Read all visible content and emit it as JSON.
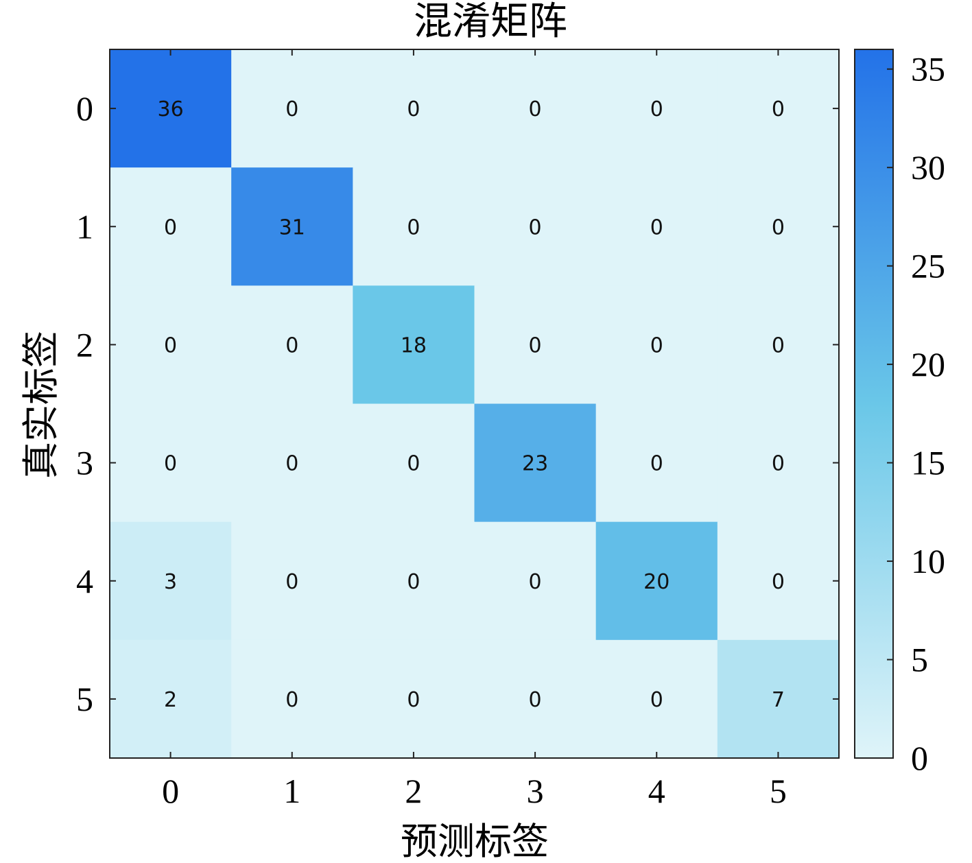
{
  "chart_data": {
    "type": "heatmap",
    "title": "混淆矩阵",
    "xlabel": "预测标签",
    "ylabel": "真实标签",
    "x_categories": [
      "0",
      "1",
      "2",
      "3",
      "4",
      "5"
    ],
    "y_categories": [
      "0",
      "1",
      "2",
      "3",
      "4",
      "5"
    ],
    "values": [
      [
        36,
        0,
        0,
        0,
        0,
        0
      ],
      [
        0,
        31,
        0,
        0,
        0,
        0
      ],
      [
        0,
        0,
        18,
        0,
        0,
        0
      ],
      [
        0,
        0,
        0,
        23,
        0,
        0
      ],
      [
        3,
        0,
        0,
        0,
        20,
        0
      ],
      [
        2,
        0,
        0,
        0,
        0,
        7
      ]
    ],
    "colorbar": {
      "range": [
        0,
        36
      ],
      "ticks": [
        "0",
        "5",
        "10",
        "15",
        "20",
        "25",
        "30",
        "35"
      ],
      "low_color": "#dff4f9",
      "mid_color": "#6ac7e8",
      "high_color": "#2372e8"
    },
    "grid": false,
    "legend": "colorbar-right"
  }
}
